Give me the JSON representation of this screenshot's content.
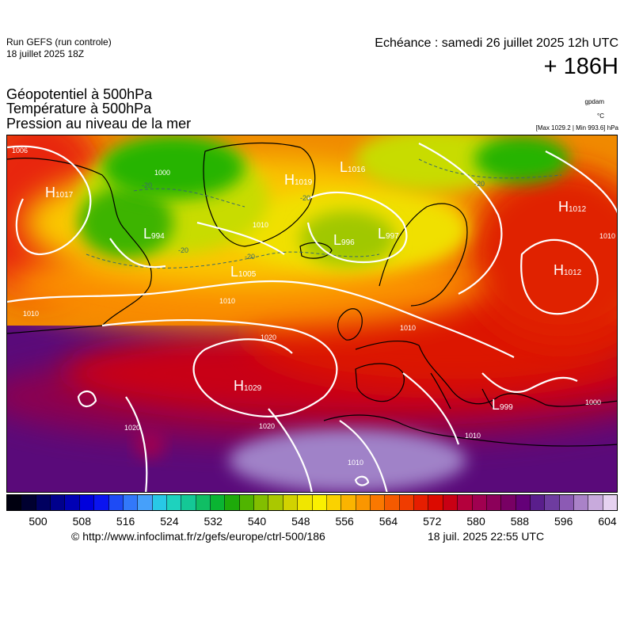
{
  "header": {
    "run_title": "Run GEFS (run controle)",
    "run_date": "18 juillet 2025 18Z",
    "echeance": "Echéance : samedi 26 juillet 2025 12h UTC",
    "horizon": "+ 186H"
  },
  "parameters": [
    "Géopotentiel à 500hPa",
    "Température à 500hPa",
    "Pression au niveau de la mer"
  ],
  "units": {
    "geopotential": "gpdam",
    "temperature": "°C",
    "pressure_range": "[Max 1029.2 | Min 993.6] hPa"
  },
  "map": {
    "pressure_centers": [
      {
        "type": "H",
        "value": "1017"
      },
      {
        "type": "H",
        "value": "1019"
      },
      {
        "type": "L",
        "value": "1016"
      },
      {
        "type": "H",
        "value": "1012"
      },
      {
        "type": "L",
        "value": "994"
      },
      {
        "type": "L",
        "value": "996"
      },
      {
        "type": "L",
        "value": "997"
      },
      {
        "type": "L",
        "value": "1005"
      },
      {
        "type": "H",
        "value": "1012"
      },
      {
        "type": "H",
        "value": "1029"
      },
      {
        "type": "L",
        "value": "999"
      }
    ],
    "isobar_labels": [
      "1006",
      "1010",
      "1010",
      "1010",
      "1010",
      "1020",
      "1020",
      "1020",
      "1000",
      "1010",
      "1010",
      "1000",
      "1010"
    ],
    "temperature_labels": [
      "-20",
      "-20",
      "-20",
      "-20",
      "-20"
    ]
  },
  "colorbar": {
    "colors": [
      "#000010",
      "#000030",
      "#000060",
      "#00008c",
      "#0000b4",
      "#0000dc",
      "#0a14f0",
      "#1e4bf5",
      "#3278fa",
      "#46a0fa",
      "#28c8e6",
      "#1ed2be",
      "#14c896",
      "#10be64",
      "#0ab432",
      "#1eaa0a",
      "#50b400",
      "#82be00",
      "#aac800",
      "#d2d200",
      "#f0e600",
      "#faf000",
      "#fad200",
      "#fab400",
      "#fa9600",
      "#fa7800",
      "#f55a00",
      "#f03c00",
      "#e61e00",
      "#dc0a00",
      "#c80014",
      "#b4003c",
      "#a00050",
      "#8c005a",
      "#780064",
      "#640078",
      "#5a1e8c",
      "#6e3ca0",
      "#8c5ab4",
      "#aa82c8",
      "#c8aadc",
      "#e6d2f0"
    ],
    "tick_labels": [
      "500",
      "508",
      "516",
      "524",
      "532",
      "540",
      "548",
      "556",
      "564",
      "572",
      "580",
      "588",
      "596",
      "604"
    ]
  },
  "footer": {
    "url": "© http://www.infoclimat.fr/z/gefs/europe/ctrl-500/186",
    "timestamp": "18 juil. 2025 22:55 UTC"
  },
  "colors": {
    "isobar": "#ffffff",
    "coastline": "#000000",
    "temperature_isotherm": "#3a6b6b"
  }
}
